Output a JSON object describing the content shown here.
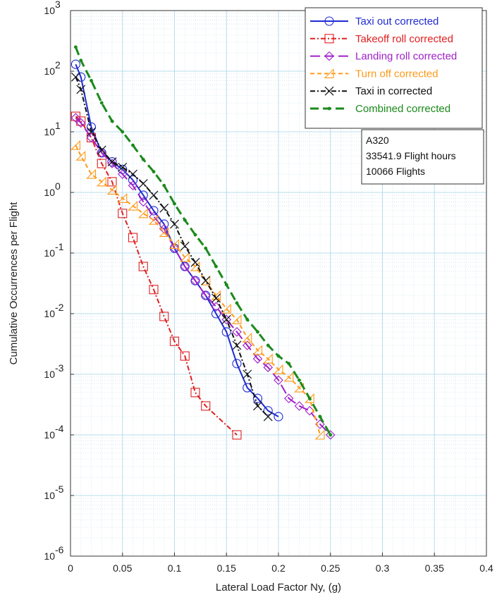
{
  "chart_data": {
    "type": "line",
    "title": "",
    "xlabel": "Lateral Load Factor Ny, (g)",
    "ylabel": "Cumulative Occurrences per Flight",
    "xlim": [
      0,
      0.4
    ],
    "ylim": [
      1e-06,
      1000
    ],
    "yscale": "log",
    "grid": true,
    "legend_position": "top-right",
    "x_ticks": [
      "0",
      "0.05",
      "0.1",
      "0.15",
      "0.2",
      "0.25",
      "0.3",
      "0.35",
      "0.4"
    ],
    "y_ticks": [
      {
        "base": "10",
        "exp": "-6",
        "value": 1e-06
      },
      {
        "base": "10",
        "exp": "-5",
        "value": 1e-05
      },
      {
        "base": "10",
        "exp": "-4",
        "value": 0.0001
      },
      {
        "base": "10",
        "exp": "-3",
        "value": 0.001
      },
      {
        "base": "10",
        "exp": "-2",
        "value": 0.01
      },
      {
        "base": "10",
        "exp": "-1",
        "value": 0.1
      },
      {
        "base": "10",
        "exp": "0",
        "value": 1
      },
      {
        "base": "10",
        "exp": "1",
        "value": 10
      },
      {
        "base": "10",
        "exp": "2",
        "value": 100
      },
      {
        "base": "10",
        "exp": "3",
        "value": 1000
      }
    ],
    "annotation": [
      "A320",
      "33541.9 Flight hours",
      "10066 Flights"
    ],
    "series": [
      {
        "name": "Taxi out corrected",
        "color": "#1f2bd1",
        "dash": "",
        "marker": "circle",
        "x": [
          0.005,
          0.01,
          0.02,
          0.03,
          0.04,
          0.05,
          0.06,
          0.07,
          0.08,
          0.09,
          0.1,
          0.11,
          0.12,
          0.13,
          0.14,
          0.15,
          0.16,
          0.17,
          0.18,
          0.19,
          0.2
        ],
        "y": [
          130,
          80,
          12,
          4.5,
          3.2,
          2.4,
          1.6,
          0.9,
          0.5,
          0.3,
          0.12,
          0.06,
          0.035,
          0.02,
          0.01,
          0.005,
          0.0015,
          0.0006,
          0.0004,
          0.00025,
          0.0002
        ]
      },
      {
        "name": "Takeoff roll corrected",
        "color": "#e02020",
        "dash": "7,3,2,3",
        "marker": "square",
        "x": [
          0.005,
          0.01,
          0.02,
          0.03,
          0.04,
          0.05,
          0.06,
          0.07,
          0.08,
          0.09,
          0.1,
          0.11,
          0.12,
          0.13,
          0.16
        ],
        "y": [
          18,
          15,
          8,
          3,
          1.5,
          0.45,
          0.18,
          0.06,
          0.025,
          0.009,
          0.0035,
          0.002,
          0.0005,
          0.0003,
          0.0001
        ]
      },
      {
        "name": "Landing roll corrected",
        "color": "#a020c8",
        "dash": "14,6",
        "marker": "diamond",
        "x": [
          0.005,
          0.01,
          0.02,
          0.03,
          0.04,
          0.05,
          0.06,
          0.07,
          0.08,
          0.09,
          0.1,
          0.11,
          0.12,
          0.13,
          0.14,
          0.15,
          0.16,
          0.17,
          0.18,
          0.19,
          0.2,
          0.21,
          0.22,
          0.23,
          0.24,
          0.25
        ],
        "y": [
          17,
          14,
          8,
          4.5,
          3,
          2,
          1.3,
          0.7,
          0.4,
          0.25,
          0.12,
          0.06,
          0.035,
          0.02,
          0.013,
          0.008,
          0.005,
          0.003,
          0.0018,
          0.0013,
          0.0008,
          0.0004,
          0.0003,
          0.00025,
          0.00015,
          0.0001
        ]
      },
      {
        "name": "Turn off corrected",
        "color": "#ff9a1a",
        "dash": "6,4",
        "marker": "triangle",
        "x": [
          0.005,
          0.01,
          0.02,
          0.03,
          0.04,
          0.05,
          0.06,
          0.07,
          0.08,
          0.09,
          0.1,
          0.11,
          0.12,
          0.13,
          0.14,
          0.15,
          0.16,
          0.17,
          0.18,
          0.19,
          0.2,
          0.21,
          0.22,
          0.23,
          0.24
        ],
        "y": [
          6,
          4,
          2,
          1.5,
          1.1,
          0.8,
          0.6,
          0.45,
          0.35,
          0.22,
          0.14,
          0.085,
          0.06,
          0.035,
          0.02,
          0.012,
          0.008,
          0.004,
          0.0025,
          0.0018,
          0.0012,
          0.0009,
          0.0006,
          0.0004,
          0.0001
        ]
      },
      {
        "name": "Taxi in corrected",
        "color": "#111111",
        "dash": "7,3,2,3",
        "marker": "x",
        "x": [
          0.005,
          0.01,
          0.02,
          0.03,
          0.04,
          0.05,
          0.06,
          0.07,
          0.08,
          0.09,
          0.1,
          0.11,
          0.12,
          0.13,
          0.14,
          0.15,
          0.16,
          0.17,
          0.18,
          0.19
        ],
        "y": [
          80,
          50,
          10,
          5,
          3.2,
          2.6,
          2,
          1.4,
          0.9,
          0.55,
          0.3,
          0.13,
          0.07,
          0.035,
          0.018,
          0.008,
          0.003,
          0.001,
          0.0003,
          0.0002
        ]
      },
      {
        "name": "Combined corrected",
        "color": "#1a8a1a",
        "dash": "12,6",
        "marker": "dot",
        "x": [
          0.005,
          0.01,
          0.02,
          0.03,
          0.04,
          0.05,
          0.06,
          0.07,
          0.08,
          0.09,
          0.1,
          0.11,
          0.12,
          0.13,
          0.14,
          0.15,
          0.16,
          0.17,
          0.18,
          0.19,
          0.2,
          0.21,
          0.22,
          0.23,
          0.24,
          0.25
        ],
        "y": [
          250,
          150,
          70,
          30,
          15,
          10,
          6,
          3.5,
          2.2,
          1.3,
          0.65,
          0.35,
          0.2,
          0.12,
          0.06,
          0.03,
          0.015,
          0.008,
          0.005,
          0.003,
          0.002,
          0.0015,
          0.0008,
          0.0004,
          0.0002,
          0.0001
        ]
      }
    ]
  }
}
